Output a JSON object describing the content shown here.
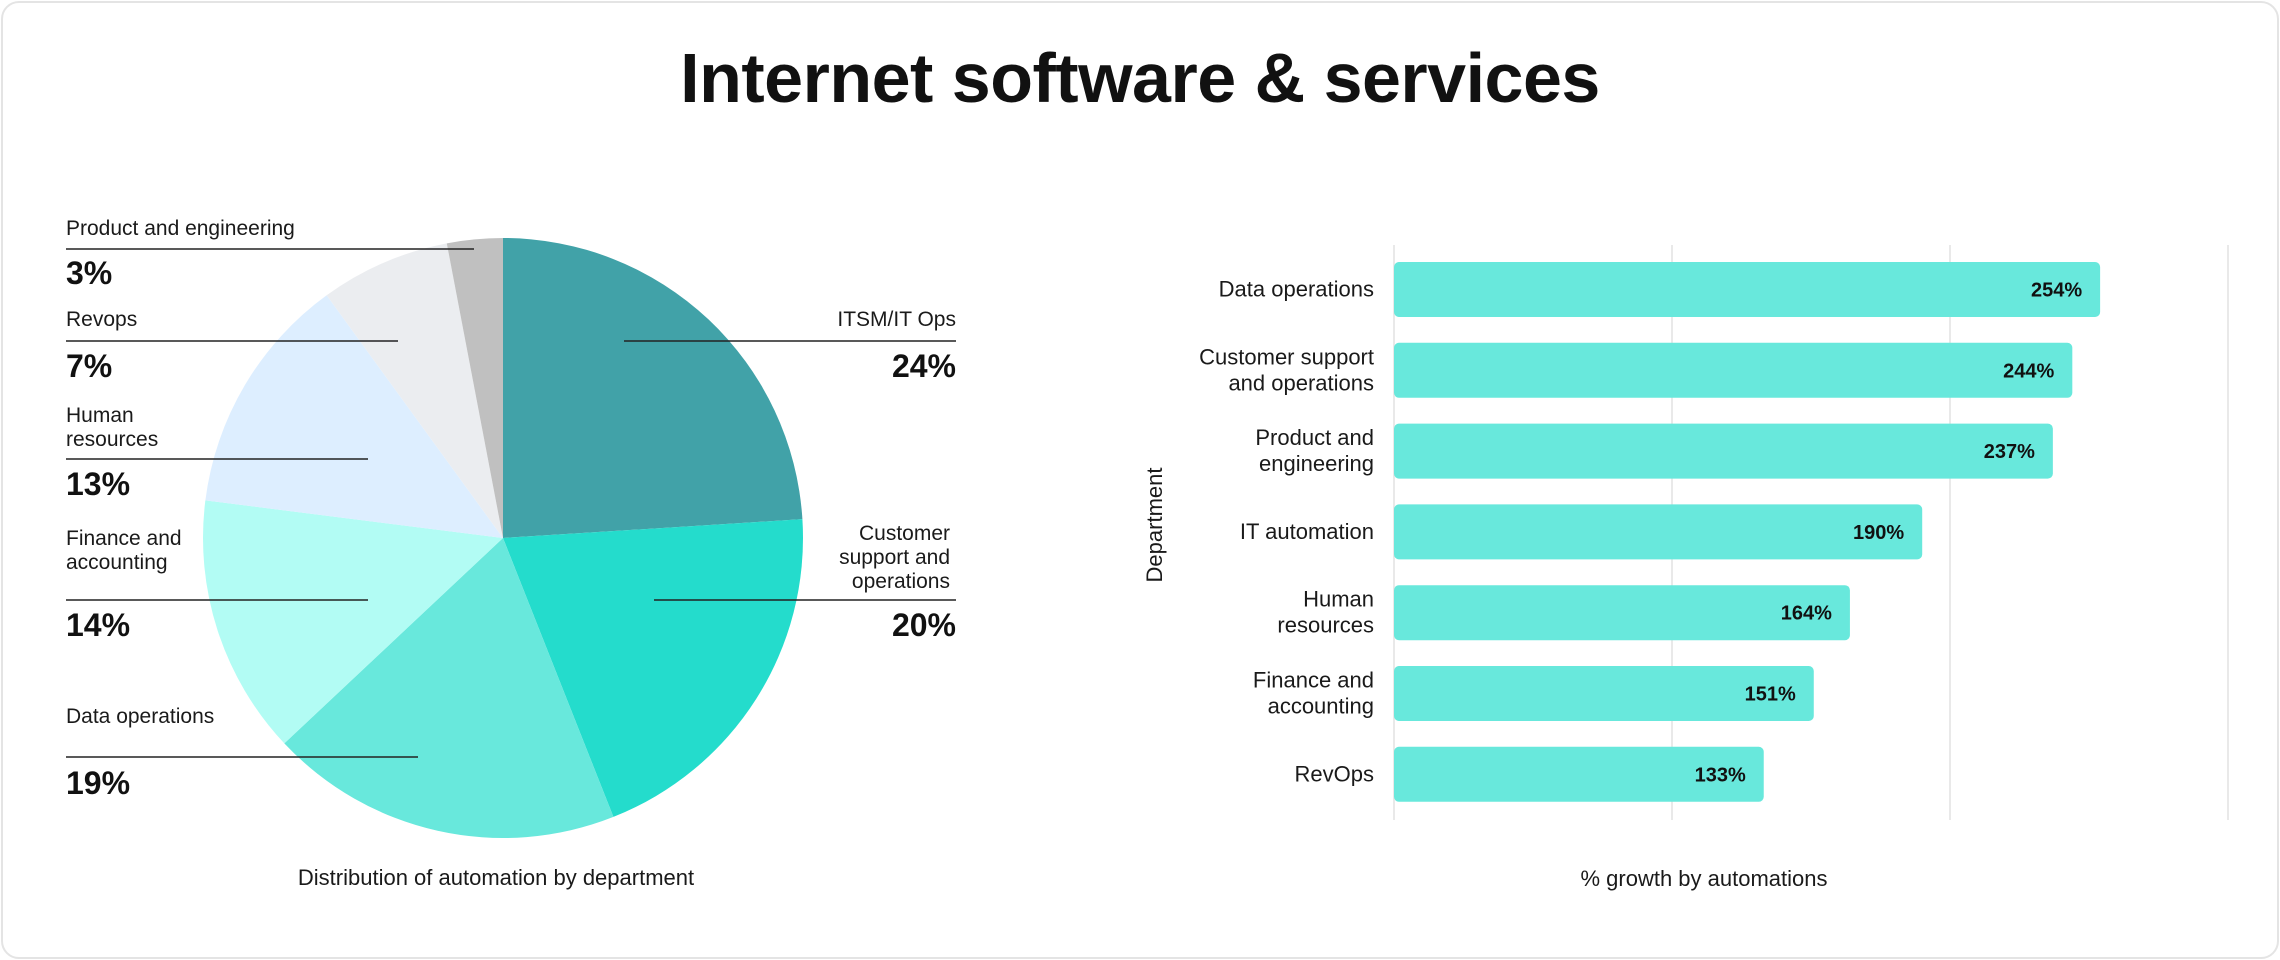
{
  "title": "Internet software & services",
  "chart_data": [
    {
      "type": "pie",
      "caption": "Distribution of automation by department",
      "slices": [
        {
          "label": "ITSM/IT Ops",
          "value": 24,
          "pct_label": "24%",
          "color": "#41a2a8"
        },
        {
          "label": "Customer support and operations",
          "value": 20,
          "pct_label": "20%",
          "color": "#24dccc"
        },
        {
          "label": "Data operations",
          "value": 19,
          "pct_label": "19%",
          "color": "#68e8dc"
        },
        {
          "label": "Finance and accounting",
          "value": 14,
          "pct_label": "14%",
          "color": "#b2fcf4"
        },
        {
          "label": "Human resources",
          "value": 13,
          "pct_label": "13%",
          "color": "#def"
        },
        {
          "label": "Revops",
          "value": 7,
          "pct_label": "7%",
          "color": "#ebedf0"
        },
        {
          "label": "Product and engineering",
          "value": 3,
          "pct_label": "3%",
          "color": "#c0c0c0"
        }
      ]
    },
    {
      "type": "bar",
      "orientation": "horizontal",
      "categories": [
        "Data operations",
        "Customer support and operations",
        "Product and engineering",
        "IT automation",
        "Human resources",
        "Finance and accounting",
        "RevOps"
      ],
      "values": [
        254,
        244,
        237,
        190,
        164,
        151,
        133
      ],
      "value_labels": [
        "254%",
        "244%",
        "237%",
        "190%",
        "164%",
        "151%",
        "133%"
      ],
      "xlabel": "% growth by automations",
      "ylabel": "Department",
      "xlim": [
        0,
        300
      ],
      "grid": true,
      "color": "#68e8dc"
    }
  ]
}
